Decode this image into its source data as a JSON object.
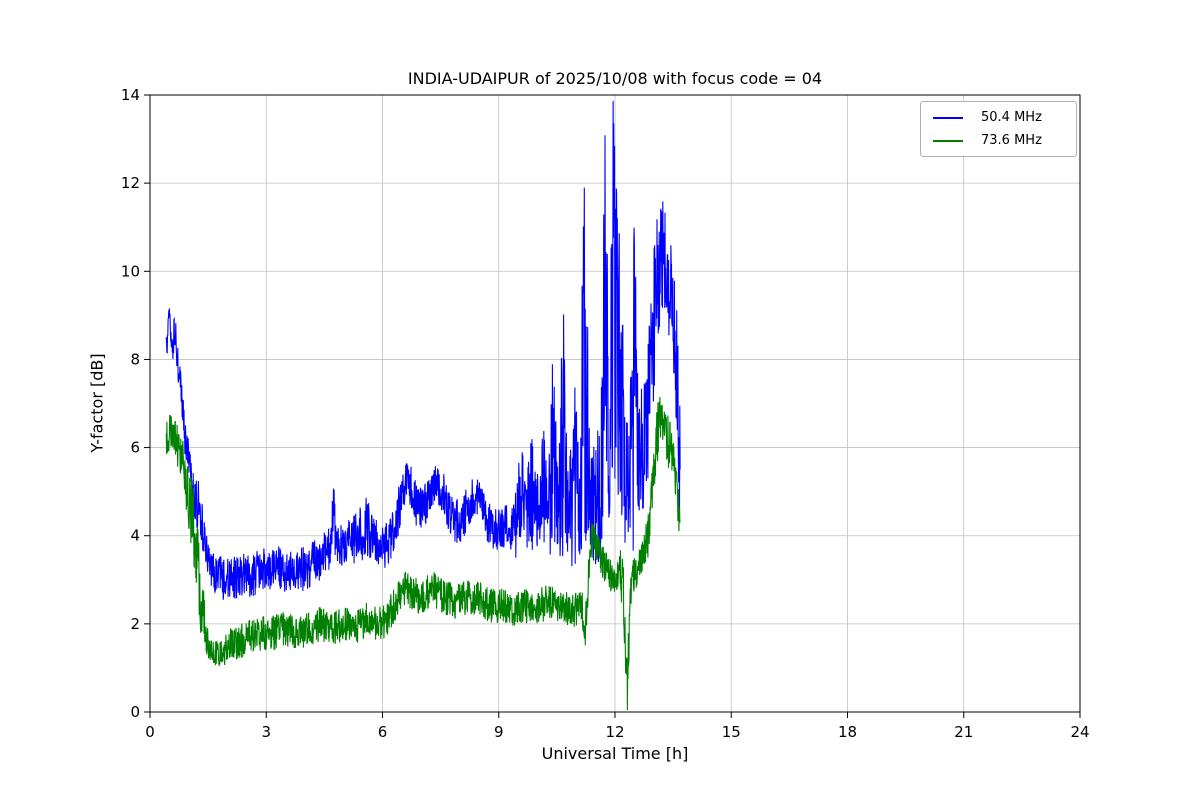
{
  "chart_data": {
    "type": "line",
    "title": "INDIA-UDAIPUR of 2025/10/08 with focus code = 04",
    "xlabel": "Universal Time [h]",
    "ylabel": "Y-factor [dB]",
    "xlim": [
      0,
      24
    ],
    "ylim": [
      0,
      14
    ],
    "x_ticks": [
      0,
      3,
      6,
      9,
      12,
      15,
      18,
      21,
      24
    ],
    "y_ticks": [
      0,
      2,
      4,
      6,
      8,
      10,
      12,
      14
    ],
    "grid": true,
    "legend_position": "upper right",
    "points_format": "[hour, y_mid_dB, y_noise_halfwidth_dB]",
    "series": [
      {
        "name": "50.4 MHz",
        "color": "#0000ff",
        "points": [
          [
            0.42,
            8.2,
            0.6
          ],
          [
            0.5,
            9.2,
            0.3
          ],
          [
            0.55,
            8.3,
            0.5
          ],
          [
            0.65,
            8.6,
            0.4
          ],
          [
            0.75,
            7.6,
            0.5
          ],
          [
            0.9,
            6.3,
            0.5
          ],
          [
            1.0,
            5.6,
            0.5
          ],
          [
            1.1,
            4.9,
            0.6
          ],
          [
            1.25,
            4.7,
            0.6
          ],
          [
            1.4,
            3.9,
            0.5
          ],
          [
            1.55,
            3.3,
            0.4
          ],
          [
            1.7,
            3.1,
            0.5
          ],
          [
            2.0,
            3.0,
            0.5
          ],
          [
            2.3,
            3.1,
            0.5
          ],
          [
            2.6,
            3.1,
            0.5
          ],
          [
            2.9,
            3.2,
            0.5
          ],
          [
            3.2,
            3.3,
            0.5
          ],
          [
            3.5,
            3.2,
            0.5
          ],
          [
            3.8,
            3.2,
            0.5
          ],
          [
            4.1,
            3.3,
            0.5
          ],
          [
            4.4,
            3.5,
            0.5
          ],
          [
            4.65,
            3.7,
            0.5
          ],
          [
            4.72,
            4.8,
            0.8
          ],
          [
            4.8,
            3.7,
            0.5
          ],
          [
            5.0,
            3.8,
            0.5
          ],
          [
            5.3,
            3.9,
            0.6
          ],
          [
            5.6,
            4.2,
            0.7
          ],
          [
            5.8,
            3.9,
            0.5
          ],
          [
            6.0,
            3.7,
            0.5
          ],
          [
            6.2,
            3.9,
            0.5
          ],
          [
            6.45,
            4.7,
            0.6
          ],
          [
            6.6,
            5.3,
            0.4
          ],
          [
            6.75,
            5.1,
            0.5
          ],
          [
            6.9,
            4.6,
            0.5
          ],
          [
            7.1,
            4.7,
            0.5
          ],
          [
            7.35,
            5.2,
            0.4
          ],
          [
            7.55,
            5.0,
            0.5
          ],
          [
            7.8,
            4.4,
            0.5
          ],
          [
            8.0,
            4.3,
            0.5
          ],
          [
            8.3,
            4.8,
            0.5
          ],
          [
            8.5,
            4.9,
            0.4
          ],
          [
            8.7,
            4.3,
            0.5
          ],
          [
            9.0,
            4.1,
            0.5
          ],
          [
            9.2,
            4.3,
            0.5
          ],
          [
            9.4,
            4.1,
            0.6
          ],
          [
            9.55,
            5.0,
            1.6
          ],
          [
            9.7,
            4.3,
            0.8
          ],
          [
            9.85,
            5.0,
            1.4
          ],
          [
            10.0,
            4.6,
            1.0
          ],
          [
            10.1,
            5.3,
            1.8
          ],
          [
            10.25,
            4.5,
            0.9
          ],
          [
            10.4,
            5.8,
            2.5
          ],
          [
            10.55,
            4.6,
            1.0
          ],
          [
            10.65,
            6.5,
            3.5
          ],
          [
            10.8,
            4.4,
            0.8
          ],
          [
            10.95,
            5.5,
            2.6
          ],
          [
            11.1,
            4.6,
            1.0
          ],
          [
            11.2,
            9.0,
            5.2
          ],
          [
            11.35,
            4.6,
            1.0
          ],
          [
            11.5,
            5.0,
            1.8
          ],
          [
            11.65,
            5.5,
            2.0
          ],
          [
            11.75,
            9.5,
            4.8
          ],
          [
            11.85,
            6.0,
            2.0
          ],
          [
            11.95,
            9.8,
            4.5
          ],
          [
            12.05,
            8.0,
            4.0
          ],
          [
            12.15,
            8.5,
            3.8
          ],
          [
            12.25,
            5.2,
            1.5
          ],
          [
            12.35,
            5.0,
            1.5
          ],
          [
            12.5,
            7.5,
            3.8
          ],
          [
            12.6,
            5.6,
            1.5
          ],
          [
            12.7,
            6.0,
            1.5
          ],
          [
            12.85,
            6.8,
            1.8
          ],
          [
            13.0,
            8.8,
            1.8
          ],
          [
            13.1,
            10.0,
            1.5
          ],
          [
            13.25,
            10.2,
            1.4
          ],
          [
            13.4,
            9.6,
            1.3
          ],
          [
            13.5,
            9.2,
            1.2
          ],
          [
            13.6,
            7.5,
            1.5
          ],
          [
            13.68,
            5.5,
            1.8
          ]
        ]
      },
      {
        "name": "73.6 MHz",
        "color": "#008000",
        "points": [
          [
            0.42,
            6.2,
            0.5
          ],
          [
            0.55,
            6.4,
            0.4
          ],
          [
            0.7,
            6.1,
            0.5
          ],
          [
            0.85,
            5.7,
            0.5
          ],
          [
            1.0,
            4.8,
            0.8
          ],
          [
            1.15,
            4.2,
            1.0
          ],
          [
            1.3,
            2.6,
            0.8
          ],
          [
            1.45,
            1.8,
            0.5
          ],
          [
            1.6,
            1.4,
            0.3
          ],
          [
            1.8,
            1.3,
            0.3
          ],
          [
            2.0,
            1.5,
            0.4
          ],
          [
            2.3,
            1.6,
            0.4
          ],
          [
            2.6,
            1.7,
            0.4
          ],
          [
            2.9,
            1.8,
            0.4
          ],
          [
            3.2,
            1.8,
            0.4
          ],
          [
            3.5,
            1.9,
            0.4
          ],
          [
            3.8,
            1.8,
            0.4
          ],
          [
            4.1,
            1.9,
            0.4
          ],
          [
            4.4,
            2.0,
            0.4
          ],
          [
            4.7,
            1.9,
            0.4
          ],
          [
            5.0,
            2.0,
            0.4
          ],
          [
            5.3,
            1.9,
            0.4
          ],
          [
            5.6,
            2.1,
            0.4
          ],
          [
            5.9,
            2.0,
            0.4
          ],
          [
            6.1,
            2.1,
            0.4
          ],
          [
            6.35,
            2.5,
            0.4
          ],
          [
            6.6,
            2.8,
            0.4
          ],
          [
            6.8,
            2.7,
            0.4
          ],
          [
            7.0,
            2.6,
            0.4
          ],
          [
            7.3,
            2.8,
            0.4
          ],
          [
            7.6,
            2.6,
            0.4
          ],
          [
            7.9,
            2.5,
            0.4
          ],
          [
            8.2,
            2.6,
            0.4
          ],
          [
            8.5,
            2.6,
            0.4
          ],
          [
            8.8,
            2.4,
            0.4
          ],
          [
            9.1,
            2.4,
            0.4
          ],
          [
            9.4,
            2.3,
            0.4
          ],
          [
            9.7,
            2.4,
            0.4
          ],
          [
            10.0,
            2.4,
            0.4
          ],
          [
            10.3,
            2.5,
            0.4
          ],
          [
            10.6,
            2.4,
            0.4
          ],
          [
            10.9,
            2.3,
            0.4
          ],
          [
            11.1,
            2.4,
            0.4
          ],
          [
            11.25,
            2.0,
            0.6
          ],
          [
            11.35,
            3.8,
            0.5
          ],
          [
            11.45,
            4.0,
            0.4
          ],
          [
            11.6,
            3.5,
            0.4
          ],
          [
            11.75,
            3.3,
            0.4
          ],
          [
            11.9,
            3.1,
            0.4
          ],
          [
            12.05,
            3.1,
            0.4
          ],
          [
            12.15,
            3.2,
            0.5
          ],
          [
            12.25,
            2.2,
            1.0
          ],
          [
            12.32,
            0.6,
            0.6
          ],
          [
            12.4,
            2.9,
            0.5
          ],
          [
            12.55,
            3.2,
            0.4
          ],
          [
            12.7,
            3.5,
            0.4
          ],
          [
            12.85,
            4.0,
            0.5
          ],
          [
            13.0,
            5.3,
            0.7
          ],
          [
            13.1,
            6.4,
            0.8
          ],
          [
            13.2,
            6.6,
            0.7
          ],
          [
            13.35,
            6.2,
            0.6
          ],
          [
            13.5,
            5.9,
            0.6
          ],
          [
            13.6,
            5.2,
            0.6
          ],
          [
            13.68,
            4.3,
            0.6
          ]
        ]
      }
    ]
  }
}
